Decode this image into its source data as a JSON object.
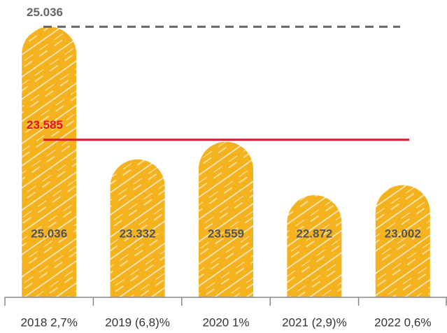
{
  "chart_data": {
    "type": "bar",
    "categories": [
      "2018 2,7%",
      "2019 (6,8)%",
      "2020 1%",
      "2021 (2,9)%",
      "2022 0,6%"
    ],
    "values": [
      25.036,
      23.332,
      23.559,
      22.872,
      23.002
    ],
    "color": "#f4b21f",
    "ylim": [
      21.56,
      25.38
    ],
    "reference_lines": [
      {
        "value": 25.036,
        "color": "#666666",
        "style": "dashed"
      },
      {
        "value": 23.585,
        "color": "#e4132e",
        "style": "solid"
      }
    ]
  }
}
